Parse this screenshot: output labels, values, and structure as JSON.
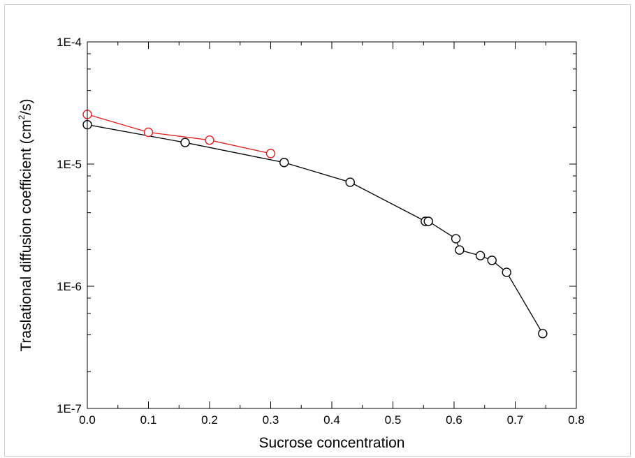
{
  "chart_data": {
    "type": "scatter",
    "xlabel": "Sucrose concentration",
    "ylabel": "Traslational diffusion coefficient (cm",
    "ylabel_sup": "2",
    "ylabel_tail": "/s)",
    "xlim": [
      0.0,
      0.8
    ],
    "ylim": [
      1e-07,
      0.0001
    ],
    "yscale": "log",
    "grid": false,
    "legend": "none",
    "x_ticks": [
      0.0,
      0.1,
      0.2,
      0.3,
      0.4,
      0.5,
      0.6,
      0.7,
      0.8
    ],
    "x_tick_labels": [
      "0.0",
      "0.1",
      "0.2",
      "0.3",
      "0.4",
      "0.5",
      "0.6",
      "0.7",
      "0.8"
    ],
    "y_ticks": [
      1e-07,
      1e-06,
      1e-05,
      0.0001
    ],
    "y_tick_labels": [
      "1E-7",
      "1E-6",
      "1E-5",
      "1E-4"
    ],
    "series": [
      {
        "color": "#000000",
        "marker": "open-circle",
        "line": true,
        "x": [
          0.0,
          0.16,
          0.322,
          0.43,
          0.553,
          0.558,
          0.603,
          0.609,
          0.643,
          0.662,
          0.686,
          0.745
        ],
        "y": [
          2.1e-05,
          1.5e-05,
          1.03e-05,
          7.1e-06,
          3.4e-06,
          3.4e-06,
          2.45e-06,
          1.98e-06,
          1.78e-06,
          1.63e-06,
          1.3e-06,
          4.1e-07
        ]
      },
      {
        "color": "#e02020",
        "marker": "open-circle",
        "line": true,
        "x": [
          0.0,
          0.1,
          0.2,
          0.3
        ],
        "y": [
          2.55e-05,
          1.82e-05,
          1.57e-05,
          1.22e-05
        ]
      }
    ]
  }
}
